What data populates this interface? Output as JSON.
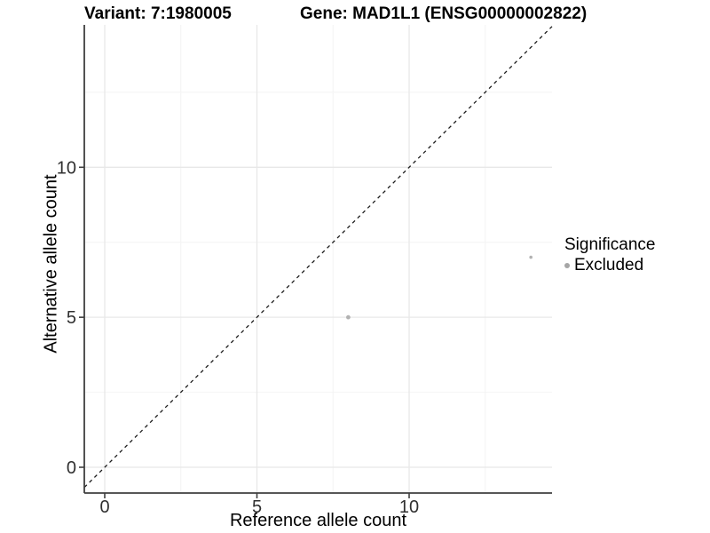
{
  "header": {
    "variant_title": "Variant: 7:1980005",
    "gene_title": "Gene: MAD1L1 (ENSG00000002822)"
  },
  "chart_data": {
    "type": "scatter",
    "title_left": "Variant: 7:1980005",
    "title_right": "Gene: MAD1L1 (ENSG00000002822)",
    "xlabel": "Reference allele count",
    "ylabel": "Alternative allele count",
    "xlim": [
      -0.7,
      14.7
    ],
    "ylim": [
      -0.9,
      14.8
    ],
    "xticks": [
      0,
      5,
      10
    ],
    "yticks": [
      0,
      5,
      10
    ],
    "xminor": [
      2.5,
      7.5,
      12.5
    ],
    "yminor": [
      2.5,
      7.5,
      12.5
    ],
    "grid": "major and minor gridlines on white panel",
    "reference_line": {
      "type": "identity y=x",
      "style": "dashed",
      "color": "#1c1c1c"
    },
    "series": [
      {
        "name": "Excluded",
        "color": "#b2b2b2",
        "points": [
          {
            "x": 8,
            "y": 5,
            "r": 2.4
          },
          {
            "x": 14,
            "y": 7,
            "r": 1.8
          }
        ]
      }
    ],
    "legend": {
      "title": "Significance",
      "position": "right",
      "entries": [
        {
          "label": "Excluded",
          "color": "#a6a6a6"
        }
      ]
    },
    "style_colors": {
      "axis_line": "#3f3f3f",
      "tick_label": "#303030",
      "grid_major": "#e8e8e8",
      "grid_minor": "#f4f4f4"
    }
  }
}
